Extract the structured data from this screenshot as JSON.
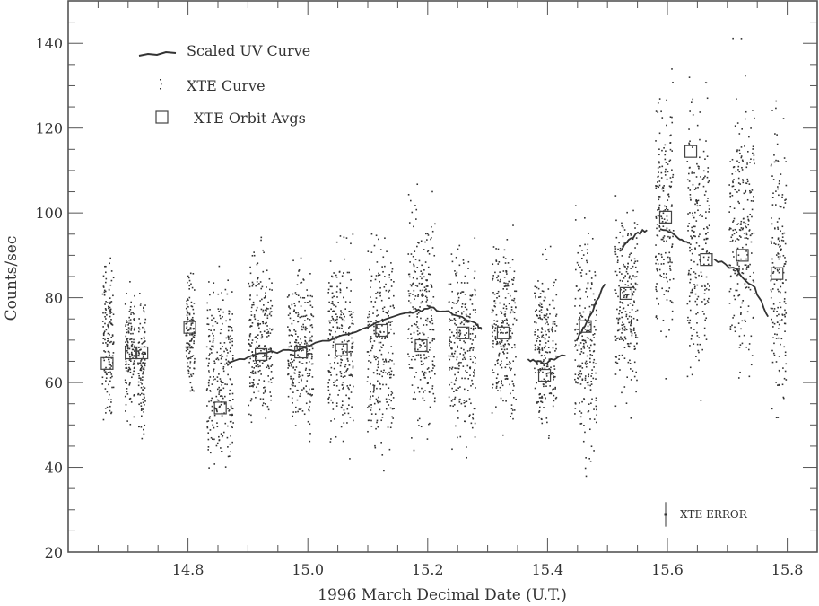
{
  "chart_data": {
    "type": "scatter",
    "title": "",
    "xlabel": "1996 March Decimal Date (U.T.)",
    "ylabel": "Counts/sec",
    "xlim": [
      14.6,
      15.85
    ],
    "ylim": [
      20,
      150
    ],
    "xticks": [
      14.8,
      15.0,
      15.2,
      15.4,
      15.6,
      15.8
    ],
    "xtick_labels": [
      "14.8",
      "15.0",
      "15.2",
      "15.4",
      "15.6",
      "15.8"
    ],
    "yticks": [
      20,
      40,
      60,
      80,
      100,
      120,
      140
    ],
    "ytick_labels": [
      "20",
      "40",
      "60",
      "80",
      "100",
      "120",
      "140"
    ],
    "x_minor_step": 0.05,
    "y_minor_step": 5,
    "grid": false,
    "legend": {
      "placement": "top-left",
      "entries": [
        "Scaled UV Curve",
        "XTE Curve",
        "XTE Orbit Avgs"
      ]
    },
    "series": [
      {
        "name": "Scaled UV Curve",
        "kind": "line-segments",
        "segments": [
          [
            [
              14.869,
              64.7
            ],
            [
              14.919,
              66.8
            ],
            [
              14.979,
              67.7
            ],
            [
              15.047,
              70.4
            ],
            [
              15.114,
              74.0
            ],
            [
              15.174,
              76.8
            ],
            [
              15.205,
              77.4
            ],
            [
              15.235,
              76.8
            ],
            [
              15.28,
              74.0
            ],
            [
              15.29,
              72.3
            ]
          ],
          [
            [
              15.367,
              65.5
            ],
            [
              15.393,
              64.5
            ],
            [
              15.43,
              66.6
            ]
          ],
          [
            [
              15.448,
              69.8
            ],
            [
              15.465,
              74.0
            ],
            [
              15.496,
              83.4
            ]
          ],
          [
            [
              15.52,
              91.0
            ],
            [
              15.543,
              94.5
            ],
            [
              15.566,
              96.2
            ]
          ],
          [
            [
              15.588,
              96.2
            ],
            [
              15.618,
              94.3
            ],
            [
              15.635,
              93.2
            ]
          ],
          [
            [
              15.678,
              89.1
            ],
            [
              15.716,
              86.4
            ],
            [
              15.746,
              82.1
            ],
            [
              15.768,
              75.7
            ]
          ]
        ]
      },
      {
        "name": "XTE Curve",
        "kind": "dots",
        "orbits": [
          {
            "x": [
              14.656,
              14.675
            ],
            "y": [
              45,
              96
            ]
          },
          {
            "x": [
              14.694,
              14.71
            ],
            "y": [
              47,
              88
            ]
          },
          {
            "x": [
              14.715,
              14.728
            ],
            "y": [
              44,
              86
            ]
          },
          {
            "x": [
              14.795,
              14.81
            ],
            "y": [
              53,
              90
            ]
          },
          {
            "x": [
              14.83,
              14.875
            ],
            "y": [
              28,
              92
            ]
          },
          {
            "x": [
              14.9,
              14.94
            ],
            "y": [
              43,
              98
            ]
          },
          {
            "x": [
              14.965,
              15.008
            ],
            "y": [
              40,
              97
            ]
          },
          {
            "x": [
              15.033,
              15.075
            ],
            "y": [
              38,
              101
            ]
          },
          {
            "x": [
              15.098,
              15.143
            ],
            "y": [
              35,
              104
            ]
          },
          {
            "x": [
              15.166,
              15.211
            ],
            "y": [
              36,
              112
            ]
          },
          {
            "x": [
              15.234,
              15.279
            ],
            "y": [
              38,
              101
            ]
          },
          {
            "x": [
              15.306,
              15.347
            ],
            "y": [
              42,
              103
            ]
          },
          {
            "x": [
              15.377,
              15.414
            ],
            "y": [
              39,
              96
            ]
          },
          {
            "x": [
              15.444,
              15.481
            ],
            "y": [
              33,
              107
            ]
          },
          {
            "x": [
              15.512,
              15.549
            ],
            "y": [
              50,
              108
            ]
          },
          {
            "x": [
              15.579,
              15.609
            ],
            "y": [
              58,
              139
            ]
          },
          {
            "x": [
              15.632,
              15.669
            ],
            "y": [
              48,
              140
            ]
          },
          {
            "x": [
              15.702,
              15.744
            ],
            "y": [
              48,
              143
            ]
          },
          {
            "x": [
              15.771,
              15.797
            ],
            "y": [
              40,
              140
            ]
          }
        ]
      },
      {
        "name": "XTE Orbit Avgs",
        "kind": "squares",
        "x": [
          14.665,
          14.705,
          14.723,
          14.803,
          14.854,
          14.922,
          14.988,
          15.056,
          15.123,
          15.189,
          15.259,
          15.326,
          15.395,
          15.463,
          15.531,
          15.597,
          15.639,
          15.665,
          15.725,
          15.783
        ],
        "y": [
          64.5,
          67.0,
          67.0,
          73.0,
          54.0,
          66.6,
          67.2,
          67.7,
          72.3,
          68.7,
          71.7,
          71.7,
          61.7,
          73.2,
          81.0,
          99.0,
          114.5,
          89.0,
          90.0,
          85.7
        ]
      }
    ],
    "annotations": [
      {
        "text": "XTE ERROR",
        "x": 15.597,
        "y": 28.9,
        "error_half_height": 2.9
      }
    ],
    "colors": {
      "ink": "#333333",
      "background": "#ffffff"
    }
  }
}
